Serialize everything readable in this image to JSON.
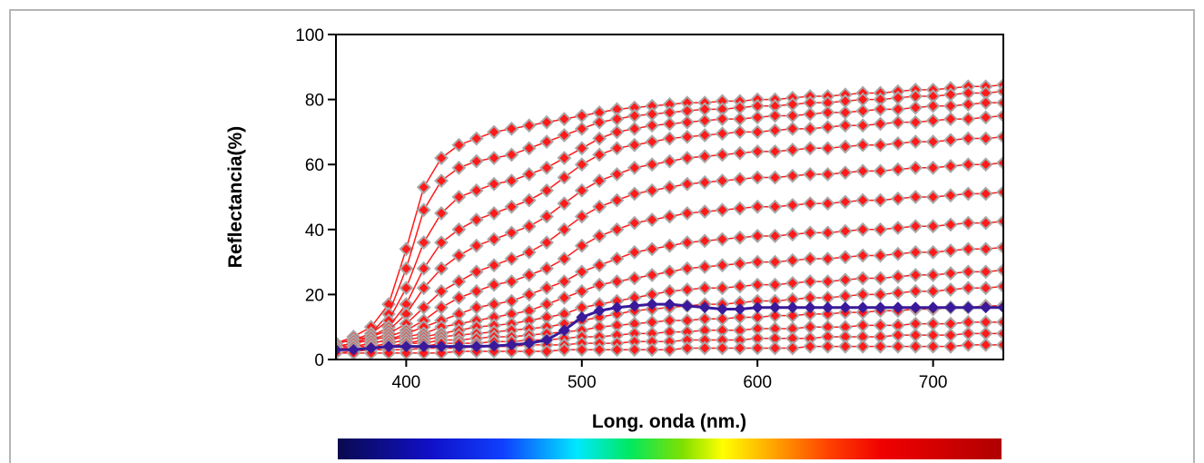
{
  "chart_data": {
    "type": "line",
    "title": "",
    "xlabel": "Long. onda (nm.)",
    "ylabel": "Reflectancia(%)",
    "xlim": [
      360,
      740
    ],
    "ylim": [
      0,
      100
    ],
    "x_ticks": [
      400,
      500,
      600,
      700
    ],
    "y_ticks": [
      0,
      20,
      40,
      60,
      80,
      100
    ],
    "grid": false,
    "legend": "none",
    "marker_colors": {
      "fill": "#ff1a1a",
      "outline": "#a8a8a8",
      "highlight": "#3a1a9a"
    },
    "x": [
      360,
      370,
      380,
      390,
      400,
      410,
      420,
      430,
      440,
      450,
      460,
      470,
      480,
      490,
      500,
      510,
      520,
      530,
      540,
      550,
      560,
      570,
      580,
      590,
      600,
      610,
      620,
      630,
      640,
      650,
      660,
      670,
      680,
      690,
      700,
      710,
      720,
      730,
      740
    ],
    "series": [
      {
        "values": [
          5,
          7,
          10,
          17,
          34,
          53,
          62,
          66,
          68,
          70,
          71,
          72,
          73,
          74,
          75,
          76,
          77,
          77.5,
          78,
          78.5,
          79,
          79,
          79.5,
          79.5,
          80,
          80,
          80.5,
          81,
          81,
          81.5,
          82,
          82,
          82.5,
          83,
          83,
          83.5,
          84,
          84,
          84.5
        ]
      },
      {
        "values": [
          5,
          6,
          8,
          14,
          28,
          46,
          55,
          59,
          61,
          62,
          63,
          65,
          67,
          69,
          71,
          73,
          74,
          75,
          75.5,
          76,
          76.5,
          77,
          77,
          77.5,
          78,
          78,
          78.5,
          79,
          79,
          79.5,
          80,
          80,
          80.5,
          81,
          81,
          81.5,
          82,
          82,
          82.5
        ]
      },
      {
        "values": [
          5,
          6,
          8,
          12,
          22,
          36,
          45,
          50,
          52,
          54,
          55,
          57,
          59,
          62,
          65,
          68,
          70,
          71,
          72,
          72.5,
          73,
          73.5,
          74,
          74,
          74.5,
          75,
          75,
          75.5,
          76,
          76,
          76.5,
          77,
          77,
          77.5,
          78,
          78,
          78.5,
          79,
          79
        ]
      },
      {
        "values": [
          5,
          6,
          7,
          10,
          17,
          28,
          36,
          40,
          43,
          45,
          47,
          49,
          52,
          56,
          60,
          63,
          65,
          66,
          67,
          68,
          68.5,
          69,
          69.5,
          70,
          70,
          70.5,
          71,
          71,
          71.5,
          72,
          72,
          72.5,
          73,
          73,
          73.5,
          74,
          74,
          74.5,
          75
        ]
      },
      {
        "values": [
          4,
          5,
          7,
          9,
          14,
          22,
          28,
          32,
          35,
          37,
          39,
          41,
          44,
          48,
          52,
          55,
          57,
          59,
          60,
          61,
          62,
          62.5,
          63,
          63.5,
          64,
          64,
          64.5,
          65,
          65,
          65.5,
          66,
          66,
          66.5,
          67,
          67,
          67.5,
          68,
          68,
          68.5
        ]
      },
      {
        "values": [
          4,
          5,
          6,
          8,
          11,
          16,
          21,
          24,
          27,
          29,
          31,
          33,
          36,
          40,
          44,
          47,
          49,
          51,
          52,
          53,
          54,
          54.5,
          55,
          55.5,
          56,
          56,
          56.5,
          57,
          57,
          57.5,
          58,
          58,
          58.5,
          59,
          59,
          59.5,
          60,
          60,
          60.5
        ]
      },
      {
        "values": [
          4,
          5,
          6,
          7,
          9,
          12,
          16,
          19,
          21,
          23,
          24,
          26,
          28,
          31,
          35,
          38,
          40,
          42,
          43,
          44,
          45,
          45.5,
          46,
          46.5,
          47,
          47,
          47.5,
          48,
          48,
          48.5,
          49,
          49,
          49.5,
          50,
          50,
          50.5,
          51,
          51,
          51.5
        ]
      },
      {
        "values": [
          4,
          4,
          5,
          6,
          8,
          10,
          12,
          14,
          16,
          17,
          18,
          20,
          22,
          24,
          27,
          29,
          31,
          33,
          34,
          35,
          36,
          36.5,
          37,
          37.5,
          38,
          38,
          38.5,
          39,
          39,
          39.5,
          40,
          40,
          40.5,
          41,
          41,
          41.5,
          42,
          42,
          42.5
        ]
      },
      {
        "values": [
          3,
          4,
          5,
          6,
          7,
          8,
          10,
          11,
          12,
          13,
          14,
          15,
          17,
          19,
          21,
          23,
          24,
          25,
          26,
          27,
          28,
          28.5,
          29,
          29.5,
          30,
          30,
          30.5,
          31,
          31,
          31.5,
          32,
          32,
          32.5,
          33,
          33,
          33.5,
          34,
          34,
          34.5
        ]
      },
      {
        "values": [
          3,
          4,
          4,
          5,
          6,
          7,
          8,
          9,
          10,
          10.5,
          11,
          12,
          13,
          14,
          16,
          17,
          18,
          19,
          20,
          21,
          21.5,
          22,
          22,
          22.5,
          23,
          23,
          23.5,
          24,
          24,
          24.5,
          25,
          25,
          25.5,
          26,
          26,
          26.5,
          27,
          27,
          27.5
        ]
      },
      {
        "values": [
          3,
          3,
          4,
          4,
          5,
          6,
          7,
          7.5,
          8,
          8.5,
          9,
          9.5,
          10,
          11,
          12,
          13,
          14,
          15,
          15.5,
          16,
          16.5,
          17,
          17,
          17.5,
          18,
          18,
          18.5,
          19,
          19,
          19.5,
          20,
          20,
          20.5,
          21,
          21,
          21.5,
          22,
          22,
          22.5
        ]
      },
      {
        "values": [
          3,
          3,
          4,
          4,
          5,
          5,
          6,
          6,
          6.5,
          7,
          7,
          7.5,
          8,
          8.5,
          9,
          10,
          10.5,
          11,
          11.5,
          12,
          12,
          12.5,
          12.5,
          13,
          13,
          13.5,
          13.5,
          14,
          14,
          14.5,
          14.5,
          15,
          15,
          15.5,
          15.5,
          16,
          16,
          16.5,
          16.5
        ]
      },
      {
        "values": [
          3,
          3,
          3,
          4,
          4,
          4,
          5,
          5,
          5,
          5.5,
          5.5,
          6,
          6,
          6.5,
          7,
          7,
          7.5,
          8,
          8,
          8.5,
          8.5,
          9,
          9,
          9,
          9.5,
          9.5,
          9.5,
          10,
          10,
          10,
          10.5,
          10.5,
          10.5,
          11,
          11,
          11,
          11.5,
          11.5,
          11.5
        ]
      },
      {
        "values": [
          2,
          2.5,
          3,
          3,
          3,
          3.5,
          3.5,
          3.5,
          4,
          4,
          4,
          4.5,
          4.5,
          4.5,
          5,
          5,
          5,
          5.5,
          5.5,
          5.5,
          6,
          6,
          6,
          6,
          6.5,
          6.5,
          6.5,
          6.5,
          7,
          7,
          7,
          7,
          7.5,
          7.5,
          7.5,
          7.5,
          8,
          8,
          8
        ]
      },
      {
        "values": [
          2,
          2,
          2,
          2,
          2,
          2,
          2,
          2.5,
          2.5,
          2.5,
          2.5,
          2.5,
          2.5,
          3,
          3,
          3,
          3,
          3,
          3,
          3,
          3.5,
          3.5,
          3.5,
          3.5,
          3.5,
          3.5,
          3.5,
          4,
          4,
          4,
          4,
          4,
          4,
          4,
          4,
          4,
          4.5,
          4.5,
          4.5
        ]
      },
      {
        "values": [
          3,
          3,
          3.5,
          4,
          4,
          4,
          4,
          4,
          4,
          4.2,
          4.5,
          5,
          6,
          9,
          13,
          15,
          16,
          16.5,
          17,
          17,
          16.5,
          16,
          15.5,
          15.5,
          16,
          16,
          16,
          16,
          16,
          16,
          16,
          16,
          16,
          16,
          16,
          16,
          16,
          16,
          16
        ]
      }
    ]
  }
}
